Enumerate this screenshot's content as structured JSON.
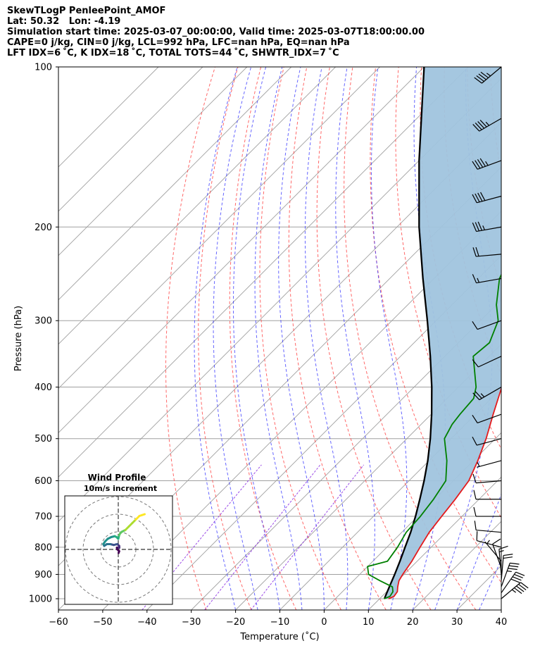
{
  "header": {
    "lines": [
      "SkewTLogP PenleePoint_AMOF",
      "Lat: 50.32   Lon: -4.19",
      "Simulation start time: 2025-03-07_00:00:00, Valid time: 2025-03-07T18:00:00.00",
      "CAPE=0 j/kg, CIN=0 j/kg, LCL=992 hPa, LFC=nan hPa, EQ=nan hPa",
      "LFT IDX=6 ˚C, K IDX=18 ˚C, TOTAL TOTS=44 ˚C, SHWTR_IDX=7 ˚C"
    ]
  },
  "colors": {
    "temperature": "#e41a1c",
    "dewpoint": "#008000",
    "parcel": "#000000",
    "shading": "#a0c4de",
    "dry_adiabat": "#ff4d4d",
    "moist_adiabat": "#3333ff",
    "mixing_ratio": "#8a2be2",
    "isotherm": "#a0a0a0",
    "isobar": "#a0a0a0"
  },
  "chart_data": [
    {
      "type": "line",
      "title": "",
      "xlabel": "Temperature (˚C)",
      "ylabel": "Pressure (hPa)",
      "xlim": [
        -60,
        40
      ],
      "ylim": [
        1050,
        100
      ],
      "y_scale": "log",
      "skew": true,
      "x_ticks": [
        -60,
        -50,
        -40,
        -30,
        -20,
        -10,
        0,
        10,
        20,
        30,
        40
      ],
      "x_tick_labels": [
        "−60",
        "−50",
        "−40",
        "−30",
        "−20",
        "−10",
        "0",
        "10",
        "20",
        "30",
        "40"
      ],
      "y_ticks": [
        100,
        200,
        300,
        400,
        500,
        600,
        700,
        800,
        900,
        1000
      ],
      "y_tick_labels": [
        "100",
        "200",
        "300",
        "400",
        "500",
        "600",
        "700",
        "800",
        "900",
        "1000"
      ],
      "grid": true,
      "series": [
        {
          "key": "temperature",
          "pressure": [
            1000,
            990,
            970,
            950,
            925,
            900,
            850,
            800,
            750,
            700,
            650,
            600,
            550,
            500,
            450,
            400,
            350,
            300,
            250,
            230,
            215,
            200,
            185,
            170,
            160,
            150,
            140,
            125,
            110,
            100
          ],
          "values": [
            12.0,
            12.7,
            12.4,
            11.4,
            10.3,
            9.7,
            8.8,
            7.5,
            6.2,
            5.4,
            4.6,
            3.5,
            1.0,
            -2.1,
            -6.0,
            -10.2,
            -16.0,
            -22.0,
            -30.0,
            -33.5,
            -35.0,
            -36.0,
            -35.2,
            -35.0,
            -36.5,
            -38.5,
            -40.8,
            -44.7,
            -48.3,
            -50.3
          ]
        },
        {
          "key": "dewpoint",
          "pressure": [
            1000,
            990,
            970,
            950,
            925,
            900,
            870,
            850,
            800,
            750,
            700,
            650,
            600,
            550,
            500,
            470,
            450,
            420,
            400,
            350,
            330,
            300,
            280,
            250,
            230,
            215,
            200,
            185,
            175,
            170,
            160,
            140,
            120,
            100
          ],
          "values": [
            11.0,
            11.8,
            11.4,
            10.2,
            6.0,
            2.0,
            0.0,
            3.3,
            2.4,
            1.0,
            0.6,
            -0.3,
            -1.7,
            -6.0,
            -11.5,
            -13.0,
            -13.5,
            -14.0,
            -16.0,
            -23.6,
            -23.0,
            -26.0,
            -30.0,
            -35.2,
            -37.5,
            -39.5,
            -40.0,
            -42.0,
            -46.5,
            -49.5,
            -51.5,
            -53.0,
            -56.0,
            -58.7
          ]
        },
        {
          "key": "parcel",
          "pressure": [
            1000,
            992,
            950,
            900,
            850,
            800,
            750,
            700,
            650,
            600,
            550,
            500,
            450,
            400,
            350,
            300,
            250,
            200,
            150,
            120,
            100
          ],
          "values": [
            11.1,
            10.8,
            9.5,
            7.9,
            6.1,
            4.1,
            2.0,
            -0.5,
            -3.4,
            -6.6,
            -10.3,
            -14.7,
            -19.9,
            -26.0,
            -33.3,
            -42.0,
            -52.5,
            -65.0,
            -80.0,
            -91.0,
            -100.0
          ]
        }
      ]
    },
    {
      "type": "line",
      "title": "Wind Profile",
      "subtitle": "10m/s increment",
      "polar": true,
      "ring_increment": 10,
      "rings": [
        10,
        20,
        30
      ],
      "series": [
        {
          "name": "hodograph",
          "u": [
            0.2,
            0.5,
            -0.5,
            -0.8,
            0.2,
            0.6,
            0.5,
            -0.5,
            -1.5,
            -2.5,
            -4.5,
            -6.5,
            -8.0,
            -8.5,
            -7.5,
            -6.0,
            -4.0,
            -2.0,
            -1.0,
            0.0,
            0.5,
            1.0,
            2.0,
            4.0,
            6.0,
            8.0,
            10.0,
            12.0,
            13.5,
            15.0
          ],
          "v": [
            -2.0,
            -1.0,
            0.0,
            1.0,
            1.0,
            1.0,
            2.0,
            3.0,
            2.8,
            2.5,
            3.0,
            3.0,
            2.0,
            3.0,
            4.5,
            6.0,
            7.0,
            7.5,
            7.0,
            6.0,
            8.0,
            9.0,
            10.0,
            11.0,
            13.0,
            15.0,
            17.0,
            19.0,
            19.5,
            20.0
          ]
        }
      ]
    }
  ],
  "wind_barbs": {
    "pressure": [
      1000,
      975,
      950,
      925,
      900,
      875,
      850,
      800,
      750,
      700,
      650,
      600,
      550,
      500,
      450,
      400,
      350,
      300,
      250,
      225,
      200,
      175,
      150,
      125,
      100
    ],
    "speed_kt": [
      45,
      40,
      35,
      20,
      15,
      10,
      5,
      10,
      10,
      10,
      10,
      10,
      5,
      10,
      10,
      25,
      10,
      10,
      15,
      20,
      35,
      40,
      45,
      45,
      45
    ],
    "direction_deg": [
      50,
      35,
      20,
      5,
      355,
      340,
      320,
      285,
      275,
      270,
      270,
      265,
      255,
      255,
      250,
      240,
      245,
      250,
      260,
      265,
      260,
      255,
      250,
      240,
      230
    ]
  }
}
